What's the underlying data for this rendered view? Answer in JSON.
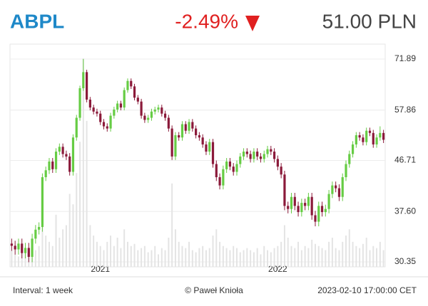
{
  "quote": {
    "symbol": "ABPL",
    "change": "-2.49%",
    "price": "51.00 PLN"
  },
  "footer": {
    "interval": "Interval: 1 week",
    "author": "© Paweł Knioła",
    "timestamp": "2023-02-10 17:00:00 CET"
  },
  "chart_data": {
    "type": "candlestick",
    "log_scale": true,
    "grid": true,
    "up_color": "#66cc44",
    "down_color": "#8b1a3a",
    "volume_color": "#e4e4e4",
    "xlim": [
      0,
      110
    ],
    "xticks": [
      {
        "value": 26.5,
        "label": "2021"
      },
      {
        "value": 78.5,
        "label": "2022"
      }
    ],
    "ylim": [
      29.71,
      76.6
    ],
    "yticks": [
      30.35,
      {
        "value": 37.6,
        "label": "37.60"
      },
      46.71,
      57.86,
      71.89
    ],
    "volume_max": 100,
    "open": [
      32.8,
      32.5,
      32.0,
      32.8,
      31.5,
      32.2,
      31.0,
      33.5,
      34.8,
      35.2,
      43.5,
      44.8,
      46.5,
      45.0,
      48.5,
      49.5,
      48.0,
      47.5,
      44.5,
      51.5,
      56.0,
      63.5,
      68.0,
      60.5,
      58.5,
      57.5,
      57.0,
      55.0,
      54.0,
      53.5,
      56.5,
      58.0,
      59.5,
      58.5,
      63.0,
      65.5,
      64.0,
      61.0,
      60.0,
      56.5,
      55.5,
      56.0,
      57.5,
      58.0,
      58.5,
      57.0,
      56.0,
      53.5,
      47.5,
      52.0,
      51.5,
      54.5,
      53.0,
      55.0,
      53.5,
      52.0,
      51.5,
      50.0,
      48.5,
      50.5,
      46.0,
      43.5,
      42.0,
      45.0,
      46.5,
      45.5,
      44.5,
      46.0,
      47.5,
      48.5,
      48.0,
      47.0,
      48.5,
      47.5,
      47.0,
      48.0,
      49.0,
      48.5,
      47.0,
      45.5,
      44.0,
      38.5,
      38.0,
      40.0,
      38.5,
      37.5,
      39.0,
      38.5,
      40.0,
      37.0,
      36.0,
      38.5,
      37.5,
      38.0,
      40.5,
      42.0,
      41.5,
      40.0,
      43.5,
      46.0,
      48.0,
      50.0,
      52.0,
      51.5,
      50.5,
      53.0,
      52.5,
      50.0,
      51.5,
      52.5
    ],
    "high": [
      33.5,
      33.2,
      33.5,
      33.5,
      32.9,
      32.9,
      34.2,
      35.5,
      35.9,
      44.2,
      45.5,
      47.2,
      47.2,
      49.2,
      50.2,
      50.2,
      48.7,
      48.2,
      52.2,
      56.7,
      64.2,
      71.9,
      68.7,
      61.2,
      59.2,
      58.2,
      57.7,
      55.7,
      54.7,
      57.2,
      58.7,
      60.2,
      60.2,
      63.7,
      66.2,
      66.2,
      64.7,
      61.7,
      60.7,
      57.2,
      56.7,
      58.2,
      58.7,
      59.2,
      59.2,
      57.7,
      56.7,
      54.2,
      52.7,
      52.7,
      55.2,
      55.2,
      55.7,
      55.7,
      54.2,
      52.7,
      52.2,
      50.7,
      51.2,
      51.2,
      46.7,
      44.2,
      45.7,
      47.2,
      47.2,
      46.2,
      46.7,
      48.2,
      49.2,
      49.2,
      48.7,
      49.2,
      49.2,
      48.2,
      48.7,
      49.7,
      49.7,
      49.2,
      47.7,
      46.2,
      44.7,
      39.2,
      40.7,
      40.7,
      39.2,
      39.7,
      39.7,
      40.7,
      40.7,
      37.7,
      39.2,
      39.2,
      38.7,
      41.2,
      42.7,
      42.7,
      42.2,
      44.2,
      46.7,
      48.7,
      50.7,
      52.7,
      52.7,
      52.2,
      53.7,
      53.7,
      53.2,
      52.2,
      54.0,
      53.2
    ],
    "low": [
      31.8,
      31.3,
      31.3,
      30.8,
      30.8,
      30.3,
      30.3,
      32.8,
      34.1,
      34.5,
      42.8,
      44.1,
      44.3,
      44.3,
      47.8,
      47.3,
      46.8,
      43.8,
      43.8,
      50.8,
      55.3,
      62.8,
      59.8,
      57.8,
      56.8,
      56.3,
      54.3,
      53.3,
      52.8,
      52.8,
      55.8,
      57.3,
      57.8,
      57.8,
      62.3,
      63.3,
      60.3,
      59.3,
      55.8,
      54.8,
      54.8,
      55.3,
      56.8,
      57.3,
      56.3,
      55.3,
      52.8,
      46.8,
      46.8,
      50.8,
      50.8,
      52.3,
      52.3,
      52.8,
      51.3,
      50.8,
      49.3,
      47.8,
      47.8,
      45.3,
      42.8,
      41.3,
      41.3,
      44.3,
      44.8,
      43.8,
      43.8,
      45.3,
      46.8,
      47.3,
      46.3,
      46.3,
      46.8,
      46.3,
      46.3,
      47.3,
      47.8,
      46.3,
      44.8,
      43.3,
      37.8,
      37.3,
      37.3,
      37.8,
      36.8,
      36.8,
      37.8,
      37.8,
      36.3,
      35.3,
      35.3,
      36.8,
      36.8,
      37.3,
      39.8,
      40.8,
      39.3,
      39.3,
      42.8,
      45.3,
      47.3,
      49.3,
      50.8,
      49.8,
      49.8,
      51.8,
      49.3,
      49.3,
      50.8,
      50.3
    ],
    "close": [
      32.5,
      32.0,
      32.8,
      31.5,
      32.2,
      31.0,
      33.5,
      34.8,
      35.2,
      43.5,
      44.8,
      46.5,
      45.0,
      48.5,
      49.5,
      48.0,
      47.5,
      44.5,
      51.5,
      56.0,
      63.5,
      68.0,
      60.5,
      58.5,
      57.5,
      57.0,
      55.0,
      54.0,
      53.5,
      56.5,
      58.0,
      59.5,
      58.5,
      63.0,
      65.5,
      64.0,
      61.0,
      60.0,
      56.5,
      55.5,
      56.0,
      57.5,
      58.0,
      58.5,
      57.0,
      56.0,
      53.5,
      47.5,
      52.0,
      51.5,
      54.5,
      53.0,
      55.0,
      53.5,
      52.0,
      51.5,
      50.0,
      48.5,
      50.5,
      46.0,
      43.5,
      42.0,
      45.0,
      46.5,
      45.5,
      44.5,
      46.0,
      47.5,
      48.5,
      48.0,
      47.0,
      48.5,
      47.5,
      47.0,
      48.0,
      49.0,
      48.5,
      47.0,
      45.5,
      44.0,
      38.5,
      38.0,
      40.0,
      38.5,
      37.5,
      39.0,
      38.5,
      40.0,
      37.0,
      36.0,
      38.5,
      37.5,
      38.0,
      40.5,
      42.0,
      41.5,
      40.0,
      43.5,
      46.0,
      48.0,
      50.0,
      52.0,
      51.5,
      50.5,
      53.0,
      52.5,
      50.0,
      51.5,
      52.5,
      51.0
    ],
    "volume": [
      8,
      6,
      5,
      10,
      7,
      9,
      12,
      8,
      10,
      30,
      15,
      12,
      10,
      25,
      14,
      18,
      20,
      35,
      30,
      45,
      60,
      100,
      70,
      20,
      15,
      12,
      10,
      8,
      12,
      15,
      10,
      14,
      9,
      18,
      12,
      10,
      11,
      8,
      9,
      10,
      7,
      8,
      10,
      6,
      9,
      8,
      14,
      40,
      18,
      12,
      10,
      9,
      12,
      8,
      7,
      9,
      10,
      8,
      9,
      15,
      18,
      12,
      10,
      9,
      8,
      10,
      9,
      7,
      8,
      9,
      8,
      7,
      9,
      6,
      10,
      8,
      7,
      9,
      10,
      12,
      20,
      14,
      10,
      9,
      12,
      8,
      10,
      9,
      13,
      11,
      10,
      9,
      8,
      12,
      14,
      9,
      8,
      12,
      15,
      18,
      12,
      10,
      9,
      11,
      14,
      8,
      10,
      9,
      12,
      8
    ]
  }
}
